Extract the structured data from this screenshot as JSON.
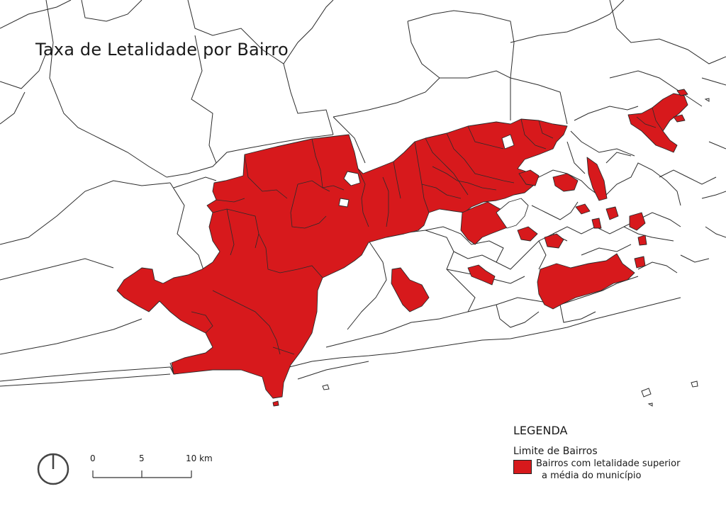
{
  "map": {
    "title": "Taxa de Letalidade por Bairro",
    "colors": {
      "highlight": "#d7191c",
      "boundary": "#2b2b2b",
      "background": "#ffffff"
    }
  },
  "legend": {
    "heading": "LEGENDA",
    "boundary_label": "Limite de Bairros",
    "highlight_label_line1": "Bairros com letalidade superior",
    "highlight_label_line2": "a média do município"
  },
  "scale_bar": {
    "labels": [
      "0",
      "5",
      "10 km"
    ]
  },
  "north_arrow": {
    "icon": "north-arrow-icon"
  }
}
